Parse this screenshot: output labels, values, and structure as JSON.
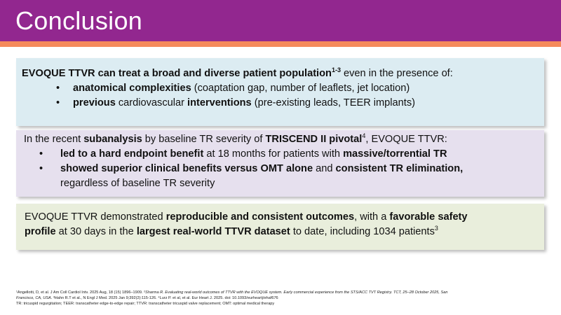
{
  "header": {
    "title": "Conclusion"
  },
  "box1": {
    "lead_bold": "EVOQUE TTVR can treat a broad and diverse patient population",
    "lead_sup": "1-3",
    "lead_rest": " even in the presence of:",
    "bullets": [
      {
        "bold": "anatomical complexities",
        "text": " (coaptation gap, number of leaflets, jet location)"
      },
      {
        "bold": "previous",
        "text": " cardiovascular ",
        "bold2": "interventions",
        "text2": " (pre-existing leads, TEER implants)"
      }
    ]
  },
  "box2": {
    "intro_1": "In the recent ",
    "intro_bold_1": "subanalysis",
    "intro_2": " by baseline TR severity of ",
    "intro_bold_2": "TRISCEND II pivotal",
    "intro_sup": "4",
    "intro_3": ", EVOQUE TTVR:",
    "bullets": [
      {
        "bold": "led to a hard endpoint benefit",
        "text": " at 18 months for patients with ",
        "bold2": "massive/torrential TR"
      },
      {
        "bold": "showed superior clinical benefits versus OMT alone",
        "text": " and ",
        "bold2": "consistent TR elimination,",
        "line2": "regardless of baseline TR severity"
      }
    ]
  },
  "box3": {
    "t1": "EVOQUE TTVR demonstrated ",
    "b1": "reproducible and consistent outcomes",
    "t2": ", with a ",
    "b2": "favorable safety",
    "b3": "profile",
    "t3": " at 30 days in the ",
    "b4": "largest real-world TTVR dataset",
    "t4": " to date, including 1034 patients",
    "sup": "3"
  },
  "footnotes": {
    "line1_a": "¹Angellotti, D, et al. J Am Coll Cardiol Intv. 2025 Aug, 18 (15) 1896–1909. ²",
    "line1_b": "Sharma R. Evaluating real-world outcomes of TTVR with the EVOQUE system. Early commercial experience from the STS/ACC TVT Registry. TCT, 25–28 October 2025, San",
    "line2_a": "Francisco, CA, USA.",
    "line2_b": " ³Hahn R.T et al., N Engl J Med. 2025 Jan 9;392(2):115-126. ⁴Lurz P. et al, et al. Eur Heart J. 2025. doi: 10.1093/eurheartj/ehaf676",
    "line3": "TR: tricuspid regurgitation; TEER: transcatheter edge-to-edge repair; TTVR: transcatheter tricuspid valve replacement; OMT: optimal medical therapy"
  },
  "colors": {
    "title_bar": "#92278f",
    "title_underline": "#f58a5b",
    "box1_bg": "#dcecf2",
    "box2_bg": "#e6e0ee",
    "box3_bg": "#e9eedc"
  }
}
